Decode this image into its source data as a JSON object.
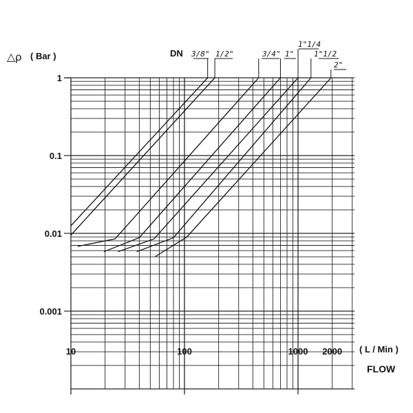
{
  "chart_data": {
    "type": "line",
    "x_scale": "log",
    "y_scale": "log",
    "xlim": [
      10,
      3000
    ],
    "ylim": [
      0.0001,
      1
    ],
    "grid": true,
    "ylabel_symbol": "△ρ",
    "ylabel": "( Bar )",
    "xlabel_units": "( L / Min )",
    "xlabel": "FLOW",
    "legend_title": "DN",
    "x_ticks": [
      {
        "value": 10,
        "label": "10"
      },
      {
        "value": 100,
        "label": "100"
      },
      {
        "value": 1000,
        "label": "1000"
      },
      {
        "value": 2000,
        "label": "2000"
      }
    ],
    "y_ticks": [
      {
        "value": 1,
        "label": "1"
      },
      {
        "value": 0.1,
        "label": "0.1"
      },
      {
        "value": 0.01,
        "label": "0.01"
      },
      {
        "value": 0.001,
        "label": "0.001"
      }
    ],
    "series": [
      {
        "name": "3/8\"",
        "x": [
          10,
          160
        ],
        "y": [
          0.0125,
          1
        ]
      },
      {
        "name": "1/2\"",
        "x": [
          10,
          185
        ],
        "y": [
          0.0095,
          1
        ]
      },
      {
        "name": "3/4\"",
        "x": [
          11.5,
          24.5,
          450
        ],
        "y": [
          0.0068,
          0.0085,
          1
        ]
      },
      {
        "name": "1\"",
        "x": [
          19.5,
          40,
          700
        ],
        "y": [
          0.0058,
          0.0088,
          1
        ]
      },
      {
        "name": "1\"1/4",
        "x": [
          26,
          54,
          1000
        ],
        "y": [
          0.0058,
          0.0085,
          1
        ]
      },
      {
        "name": "1\"1/2",
        "x": [
          38,
          80,
          1300
        ],
        "y": [
          0.0058,
          0.0088,
          1
        ]
      },
      {
        "name": "2\"",
        "x": [
          55,
          105,
          1950
        ],
        "y": [
          0.005,
          0.009,
          1
        ]
      }
    ]
  }
}
